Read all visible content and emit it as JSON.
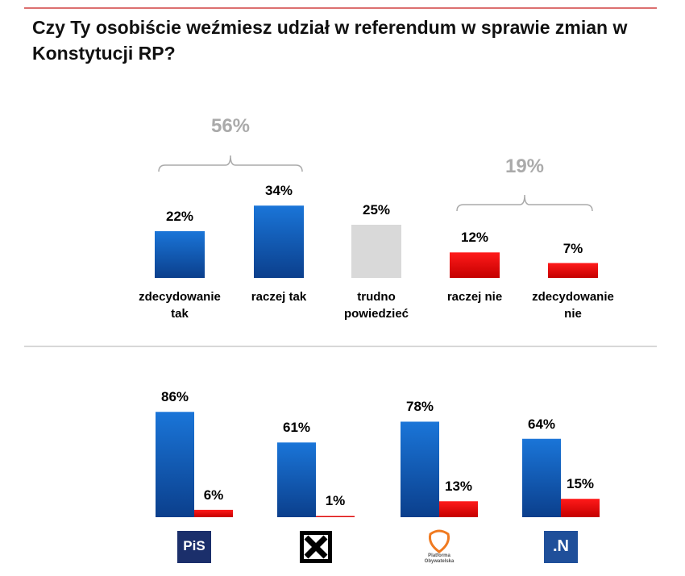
{
  "chart_data": [
    {
      "type": "bar",
      "title": "Czy Ty osobiście weźmiesz udział w referendum w sprawie zmian w Konstytucji RP?",
      "categories": [
        "zdecydowanie tak",
        "raczej tak",
        "trudno powiedzieć",
        "raczej nie",
        "zdecydowanie nie"
      ],
      "values": [
        22,
        34,
        25,
        12,
        7
      ],
      "value_labels": [
        "22%",
        "34%",
        "25%",
        "12%",
        "7%"
      ],
      "colors": [
        "blue",
        "blue",
        "grey",
        "red",
        "red"
      ],
      "annotations": [
        {
          "value": 56,
          "label": "56%"
        },
        {
          "value": 19,
          "label": "19%"
        }
      ]
    },
    {
      "type": "grouped_bar",
      "categories": [
        "PiS",
        null,
        "Platforma Obywatelska",
        ".N"
      ],
      "series": [
        {
          "color": "blue",
          "values": [
            86,
            61,
            78,
            64
          ],
          "value_labels": [
            "86%",
            "61%",
            "78%",
            "64%"
          ]
        },
        {
          "color": "red",
          "values": [
            6,
            1,
            13,
            15
          ],
          "value_labels": [
            "6%",
            "1%",
            "13%",
            "15%"
          ]
        }
      ]
    }
  ]
}
